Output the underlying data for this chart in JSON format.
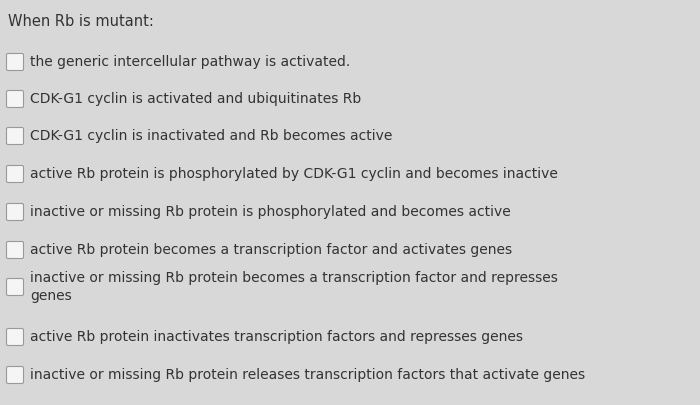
{
  "title": "When Rb is mutant:",
  "background_color": "#d8d8d8",
  "title_color": "#333333",
  "text_color": "#333333",
  "title_fontsize": 10.5,
  "item_fontsize": 10.0,
  "checkbox_color": "#f5f5f5",
  "checkbox_edge_color": "#999999",
  "items": [
    {
      "text": "the generic intercellular pathway is activated.",
      "lines": 1
    },
    {
      "text": "CDK-G1 cyclin is activated and ubiquitinates Rb",
      "lines": 1
    },
    {
      "text": "CDK-G1 cyclin is inactivated and Rb becomes active",
      "lines": 1
    },
    {
      "text": "active Rb protein is phosphorylated by CDK-G1 cyclin and becomes inactive",
      "lines": 1
    },
    {
      "text": "inactive or missing Rb protein is phosphorylated and becomes active",
      "lines": 1
    },
    {
      "text": "active Rb protein becomes a transcription factor and activates genes",
      "lines": 1
    },
    {
      "text": "inactive or missing Rb protein becomes a transcription factor and represses\ngenes",
      "lines": 2
    },
    {
      "text": "active Rb protein inactivates transcription factors and represses genes",
      "lines": 1
    },
    {
      "text": "inactive or missing Rb protein releases transcription factors that activate genes",
      "lines": 1
    }
  ]
}
